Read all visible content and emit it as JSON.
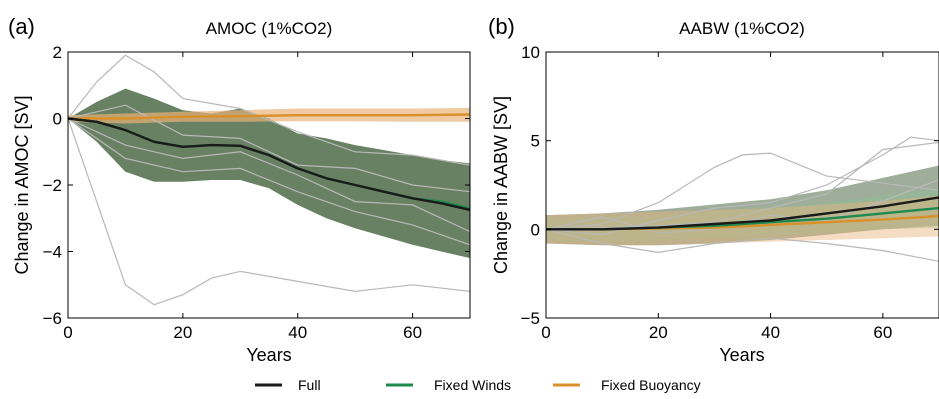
{
  "panels": [
    {
      "letter": "(a)",
      "title": "AMOC (1%CO2)",
      "xlabel": "Years",
      "ylabel": "Change in AMOC [SV]",
      "xlim": [
        0,
        70
      ],
      "ylim": [
        -6,
        2
      ],
      "xticks": [
        "0",
        "20",
        "40",
        "60"
      ],
      "yticks": [
        "2",
        "0",
        "−2",
        "−4",
        "−6"
      ]
    },
    {
      "letter": "(b)",
      "title": "AABW (1%CO2)",
      "xlabel": "Years",
      "ylabel": "Change in AABW [SV]",
      "xlim": [
        0,
        70
      ],
      "ylim": [
        -5,
        10
      ],
      "xticks": [
        "0",
        "20",
        "40",
        "60"
      ],
      "yticks": [
        "10",
        "5",
        "0",
        "−5"
      ]
    }
  ],
  "legend": [
    {
      "label": "Full",
      "color": "#1a1a1a"
    },
    {
      "label": "Fixed Winds",
      "color": "#1e8a4e"
    },
    {
      "label": "Fixed Buoyancy",
      "color": "#d9902a"
    }
  ],
  "colors": {
    "member_lines": "#b8b8b8",
    "full_band": "#4e6b47",
    "winds_band": "#8fbf95",
    "buoyancy_band": "#e8b47a"
  },
  "chart_data": [
    {
      "type": "line",
      "panel": "(a)",
      "title": "AMOC (1%CO2)",
      "xlabel": "Years",
      "ylabel": "Change in AMOC [SV]",
      "xlim": [
        0,
        70
      ],
      "ylim": [
        -6,
        2
      ],
      "grid": false,
      "legend": "bottom",
      "series": [
        {
          "name": "Full",
          "color": "#1a1a1a",
          "x": [
            0,
            5,
            10,
            15,
            20,
            25,
            30,
            35,
            40,
            45,
            50,
            55,
            60,
            65,
            70
          ],
          "y": [
            0,
            -0.1,
            -0.35,
            -0.7,
            -0.85,
            -0.8,
            -0.82,
            -1.1,
            -1.5,
            -1.8,
            -2.0,
            -2.2,
            -2.4,
            -2.55,
            -2.75
          ],
          "lower": [
            0,
            -0.7,
            -1.6,
            -1.9,
            -1.9,
            -1.85,
            -1.85,
            -2.1,
            -2.6,
            -3.0,
            -3.3,
            -3.55,
            -3.8,
            -4.0,
            -4.2
          ],
          "upper": [
            0,
            0.5,
            0.9,
            0.6,
            0.25,
            0.15,
            0.3,
            0.0,
            -0.45,
            -0.6,
            -0.8,
            -0.95,
            -1.1,
            -1.25,
            -1.35
          ]
        },
        {
          "name": "Fixed Winds",
          "color": "#1e8a4e",
          "x": [
            0,
            5,
            10,
            15,
            20,
            25,
            30,
            35,
            40,
            45,
            50,
            55,
            60,
            65,
            70
          ],
          "y": [
            0,
            -0.1,
            -0.35,
            -0.7,
            -0.85,
            -0.8,
            -0.82,
            -1.1,
            -1.5,
            -1.8,
            -2.0,
            -2.2,
            -2.4,
            -2.5,
            -2.7
          ]
        },
        {
          "name": "Fixed Buoyancy",
          "color": "#d9902a",
          "x": [
            0,
            10,
            20,
            30,
            40,
            50,
            60,
            70
          ],
          "y": [
            0,
            0.0,
            0.05,
            0.07,
            0.1,
            0.1,
            0.1,
            0.12
          ],
          "lower": [
            -0.1,
            -0.15,
            -0.1,
            -0.1,
            -0.08,
            -0.08,
            -0.1,
            -0.1
          ],
          "upper": [
            0.1,
            0.15,
            0.2,
            0.25,
            0.3,
            0.3,
            0.3,
            0.32
          ]
        }
      ],
      "members": [
        {
          "x": [
            0,
            5,
            10,
            15,
            20,
            25,
            30
          ],
          "y": [
            0,
            -2.5,
            -5.0,
            -5.6,
            -5.3,
            -4.8,
            -4.6
          ]
        },
        {
          "x": [
            30,
            40,
            50,
            60,
            70
          ],
          "y": [
            -4.6,
            -4.9,
            -5.2,
            -5.0,
            -5.2
          ]
        },
        {
          "x": [
            0,
            5,
            10,
            15,
            20,
            30,
            40,
            50,
            60,
            70
          ],
          "y": [
            0,
            1.1,
            1.9,
            1.4,
            0.6,
            0.3,
            -0.4,
            -1.0,
            -1.1,
            -1.4
          ]
        },
        {
          "x": [
            0,
            10,
            20,
            30,
            40,
            50,
            60,
            70
          ],
          "y": [
            0,
            -1.2,
            -1.6,
            -1.5,
            -2.2,
            -2.8,
            -3.2,
            -3.8
          ]
        },
        {
          "x": [
            0,
            10,
            20,
            30,
            40,
            50,
            60,
            70
          ],
          "y": [
            0,
            0.4,
            -0.5,
            -0.6,
            -1.4,
            -1.5,
            -2.0,
            -2.2
          ]
        },
        {
          "x": [
            0,
            10,
            20,
            30,
            40,
            50,
            60,
            70
          ],
          "y": [
            0,
            -0.8,
            -1.2,
            -1.0,
            -1.7,
            -2.5,
            -2.6,
            -3.4
          ]
        }
      ]
    },
    {
      "type": "line",
      "panel": "(b)",
      "title": "AABW (1%CO2)",
      "xlabel": "Years",
      "ylabel": "Change in AABW [SV]",
      "xlim": [
        0,
        70
      ],
      "ylim": [
        -5,
        10
      ],
      "grid": false,
      "legend": "bottom",
      "series": [
        {
          "name": "Full",
          "color": "#1a1a1a",
          "x": [
            0,
            10,
            20,
            30,
            40,
            50,
            60,
            70
          ],
          "y": [
            0,
            0.0,
            0.1,
            0.3,
            0.5,
            0.9,
            1.3,
            1.8
          ],
          "lower": [
            -0.8,
            -0.9,
            -0.9,
            -0.8,
            -0.6,
            -0.3,
            0.0,
            0.2
          ],
          "upper": [
            0.8,
            0.9,
            1.1,
            1.4,
            1.7,
            2.2,
            2.9,
            3.6
          ]
        },
        {
          "name": "Fixed Winds",
          "color": "#1e8a4e",
          "x": [
            0,
            10,
            20,
            30,
            40,
            50,
            60,
            70
          ],
          "y": [
            0,
            0.0,
            0.1,
            0.2,
            0.4,
            0.6,
            0.9,
            1.2
          ],
          "lower": [
            -0.6,
            -0.7,
            -0.6,
            -0.5,
            -0.4,
            -0.2,
            0.0,
            0.1
          ],
          "upper": [
            0.6,
            0.7,
            0.8,
            1.0,
            1.2,
            1.5,
            1.9,
            2.3
          ]
        },
        {
          "name": "Fixed Buoyancy",
          "color": "#d9902a",
          "x": [
            0,
            10,
            20,
            30,
            40,
            50,
            60,
            70
          ],
          "y": [
            0,
            0.0,
            0.05,
            0.1,
            0.25,
            0.4,
            0.55,
            0.75
          ],
          "lower": [
            -0.8,
            -0.9,
            -0.9,
            -0.8,
            -0.7,
            -0.6,
            -0.5,
            -0.4
          ],
          "upper": [
            0.8,
            0.9,
            1.0,
            1.1,
            1.2,
            1.4,
            1.6,
            1.9
          ]
        }
      ],
      "members": [
        {
          "x": [
            0,
            10,
            20,
            30,
            35,
            40,
            50,
            60,
            70
          ],
          "y": [
            0,
            0.3,
            1.5,
            3.5,
            4.2,
            4.3,
            3.0,
            2.6,
            2.2
          ]
        },
        {
          "x": [
            0,
            10,
            20,
            30,
            40,
            50,
            60,
            65,
            70
          ],
          "y": [
            0,
            -0.3,
            0.5,
            1.2,
            1.5,
            2.5,
            4.2,
            5.2,
            5.0
          ]
        },
        {
          "x": [
            0,
            10,
            20,
            30,
            40,
            50,
            60,
            70
          ],
          "y": [
            0,
            0.1,
            0.2,
            0.4,
            1.2,
            2.0,
            4.5,
            4.9
          ]
        },
        {
          "x": [
            0,
            10,
            20,
            30,
            40,
            50,
            60,
            70
          ],
          "y": [
            0,
            -0.8,
            -1.3,
            -0.8,
            -0.5,
            -0.8,
            -1.2,
            -1.8
          ]
        },
        {
          "x": [
            0,
            10,
            20,
            30,
            40,
            50,
            60,
            70
          ],
          "y": [
            0,
            0.7,
            -0.2,
            0.0,
            0.8,
            0.5,
            1.6,
            2.8
          ]
        }
      ]
    }
  ]
}
